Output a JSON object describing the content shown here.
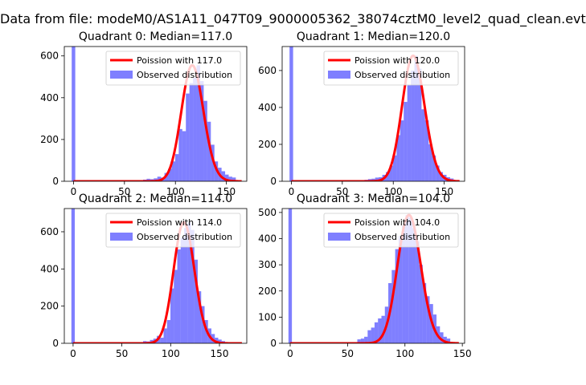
{
  "figure": {
    "suptitle": "Data from file: modeM0/AS1A11_047T09_9000005362_38074cztM0_level2_quad_clean.evt"
  },
  "colors": {
    "observed": "#0000ff",
    "observed_alpha": 0.5,
    "poisson": "#ff0000"
  },
  "chart_data": [
    {
      "type": "bar",
      "title": "Quadrant 0: Median=117.0",
      "median": 117.0,
      "xlim": [
        -9,
        170
      ],
      "ylim": [
        0,
        645
      ],
      "xticks": [
        0,
        50,
        100,
        150
      ],
      "yticks": [
        0,
        200,
        400,
        600
      ],
      "legend": {
        "placement": "upper right",
        "entries": [
          "Poission with 117.0",
          "Observed distribution"
        ]
      },
      "series": [
        {
          "name": "Poission with 117.0",
          "kind": "line"
        },
        {
          "name": "Observed distribution",
          "kind": "histogram",
          "bin_width": 3.5,
          "bins": [
            {
              "x": 0,
              "y": 645
            },
            {
              "x": 70,
              "y": 8
            },
            {
              "x": 73.5,
              "y": 12
            },
            {
              "x": 77,
              "y": 10
            },
            {
              "x": 80.5,
              "y": 14
            },
            {
              "x": 84,
              "y": 22
            },
            {
              "x": 87.5,
              "y": 18
            },
            {
              "x": 91,
              "y": 40
            },
            {
              "x": 94.5,
              "y": 60
            },
            {
              "x": 98,
              "y": 95
            },
            {
              "x": 101.5,
              "y": 130
            },
            {
              "x": 105,
              "y": 250
            },
            {
              "x": 108.5,
              "y": 240
            },
            {
              "x": 112,
              "y": 420
            },
            {
              "x": 115.5,
              "y": 470
            },
            {
              "x": 119,
              "y": 495
            },
            {
              "x": 122.5,
              "y": 555
            },
            {
              "x": 126,
              "y": 480
            },
            {
              "x": 129.5,
              "y": 385
            },
            {
              "x": 133,
              "y": 285
            },
            {
              "x": 136.5,
              "y": 175
            },
            {
              "x": 140,
              "y": 95
            },
            {
              "x": 143.5,
              "y": 65
            },
            {
              "x": 147,
              "y": 48
            },
            {
              "x": 150.5,
              "y": 32
            },
            {
              "x": 154,
              "y": 22
            },
            {
              "x": 157.5,
              "y": 18
            }
          ]
        }
      ]
    },
    {
      "type": "bar",
      "title": "Quadrant 1: Median=120.0",
      "median": 120.0,
      "xlim": [
        -9,
        170
      ],
      "ylim": [
        0,
        730
      ],
      "xticks": [
        0,
        50,
        100,
        150
      ],
      "yticks": [
        0,
        200,
        400,
        600
      ],
      "legend": {
        "placement": "upper right",
        "entries": [
          "Poission with 120.0",
          "Observed distribution"
        ]
      },
      "series": [
        {
          "name": "Poission with 120.0",
          "kind": "line"
        },
        {
          "name": "Observed distribution",
          "kind": "histogram",
          "bin_width": 3.5,
          "bins": [
            {
              "x": 0,
              "y": 730
            },
            {
              "x": 73.5,
              "y": 8
            },
            {
              "x": 77,
              "y": 12
            },
            {
              "x": 80.5,
              "y": 14
            },
            {
              "x": 84,
              "y": 20
            },
            {
              "x": 87.5,
              "y": 22
            },
            {
              "x": 91,
              "y": 35
            },
            {
              "x": 94.5,
              "y": 50
            },
            {
              "x": 98,
              "y": 85
            },
            {
              "x": 101.5,
              "y": 140
            },
            {
              "x": 105,
              "y": 250
            },
            {
              "x": 108.5,
              "y": 330
            },
            {
              "x": 112,
              "y": 430
            },
            {
              "x": 115.5,
              "y": 520
            },
            {
              "x": 119,
              "y": 600
            },
            {
              "x": 122.5,
              "y": 680
            },
            {
              "x": 126,
              "y": 610
            },
            {
              "x": 129.5,
              "y": 390
            },
            {
              "x": 133,
              "y": 330
            },
            {
              "x": 136.5,
              "y": 200
            },
            {
              "x": 140,
              "y": 140
            },
            {
              "x": 143.5,
              "y": 85
            },
            {
              "x": 147,
              "y": 50
            },
            {
              "x": 150.5,
              "y": 35
            },
            {
              "x": 154,
              "y": 22
            },
            {
              "x": 157.5,
              "y": 15
            }
          ]
        }
      ]
    },
    {
      "type": "bar",
      "title": "Quadrant 2: Median=114.0",
      "median": 114.0,
      "xlim": [
        -9,
        178
      ],
      "ylim": [
        0,
        725
      ],
      "xticks": [
        0,
        50,
        100,
        150
      ],
      "yticks": [
        0,
        200,
        400,
        600
      ],
      "legend": {
        "placement": "upper right",
        "entries": [
          "Poission with 114.0",
          "Observed distribution"
        ]
      },
      "series": [
        {
          "name": "Poission with 114.0",
          "kind": "line"
        },
        {
          "name": "Observed distribution",
          "kind": "histogram",
          "bin_width": 3.5,
          "bins": [
            {
              "x": 0,
              "y": 725
            },
            {
              "x": 73.5,
              "y": 12
            },
            {
              "x": 77,
              "y": 10
            },
            {
              "x": 80.5,
              "y": 18
            },
            {
              "x": 84,
              "y": 25
            },
            {
              "x": 87.5,
              "y": 40
            },
            {
              "x": 91,
              "y": 30
            },
            {
              "x": 94.5,
              "y": 80
            },
            {
              "x": 98,
              "y": 125
            },
            {
              "x": 101.5,
              "y": 295
            },
            {
              "x": 105,
              "y": 395
            },
            {
              "x": 108.5,
              "y": 505
            },
            {
              "x": 112,
              "y": 570
            },
            {
              "x": 115.5,
              "y": 620
            },
            {
              "x": 119,
              "y": 650
            },
            {
              "x": 122.5,
              "y": 610
            },
            {
              "x": 126,
              "y": 450
            },
            {
              "x": 129.5,
              "y": 280
            },
            {
              "x": 133,
              "y": 200
            },
            {
              "x": 136.5,
              "y": 125
            },
            {
              "x": 140,
              "y": 80
            },
            {
              "x": 143.5,
              "y": 50
            },
            {
              "x": 147,
              "y": 30
            },
            {
              "x": 150.5,
              "y": 20
            },
            {
              "x": 154,
              "y": 12
            }
          ]
        }
      ]
    },
    {
      "type": "bar",
      "title": "Quadrant 3: Median=104.0",
      "median": 104.0,
      "xlim": [
        -7,
        152
      ],
      "ylim": [
        0,
        515
      ],
      "xticks": [
        0,
        50,
        100,
        150
      ],
      "yticks": [
        0,
        100,
        200,
        300,
        400,
        500
      ],
      "legend": {
        "placement": "upper right",
        "entries": [
          "Poission with 104.0",
          "Observed distribution"
        ]
      },
      "series": [
        {
          "name": "Poission with 104.0",
          "kind": "line"
        },
        {
          "name": "Observed distribution",
          "kind": "histogram",
          "bin_width": 3,
          "bins": [
            {
              "x": 0,
              "y": 515
            },
            {
              "x": 60,
              "y": 15
            },
            {
              "x": 63,
              "y": 18
            },
            {
              "x": 66,
              "y": 25
            },
            {
              "x": 69,
              "y": 50
            },
            {
              "x": 72,
              "y": 60
            },
            {
              "x": 75,
              "y": 80
            },
            {
              "x": 78,
              "y": 95
            },
            {
              "x": 81,
              "y": 105
            },
            {
              "x": 84,
              "y": 140
            },
            {
              "x": 87,
              "y": 230
            },
            {
              "x": 90,
              "y": 280
            },
            {
              "x": 93,
              "y": 360
            },
            {
              "x": 96,
              "y": 410
            },
            {
              "x": 99,
              "y": 450
            },
            {
              "x": 102,
              "y": 490
            },
            {
              "x": 105,
              "y": 480
            },
            {
              "x": 108,
              "y": 440
            },
            {
              "x": 111,
              "y": 390
            },
            {
              "x": 114,
              "y": 300
            },
            {
              "x": 117,
              "y": 230
            },
            {
              "x": 120,
              "y": 180
            },
            {
              "x": 123,
              "y": 150
            },
            {
              "x": 126,
              "y": 110
            },
            {
              "x": 129,
              "y": 65
            },
            {
              "x": 132,
              "y": 42
            },
            {
              "x": 135,
              "y": 25
            },
            {
              "x": 138,
              "y": 18
            }
          ]
        }
      ]
    }
  ]
}
